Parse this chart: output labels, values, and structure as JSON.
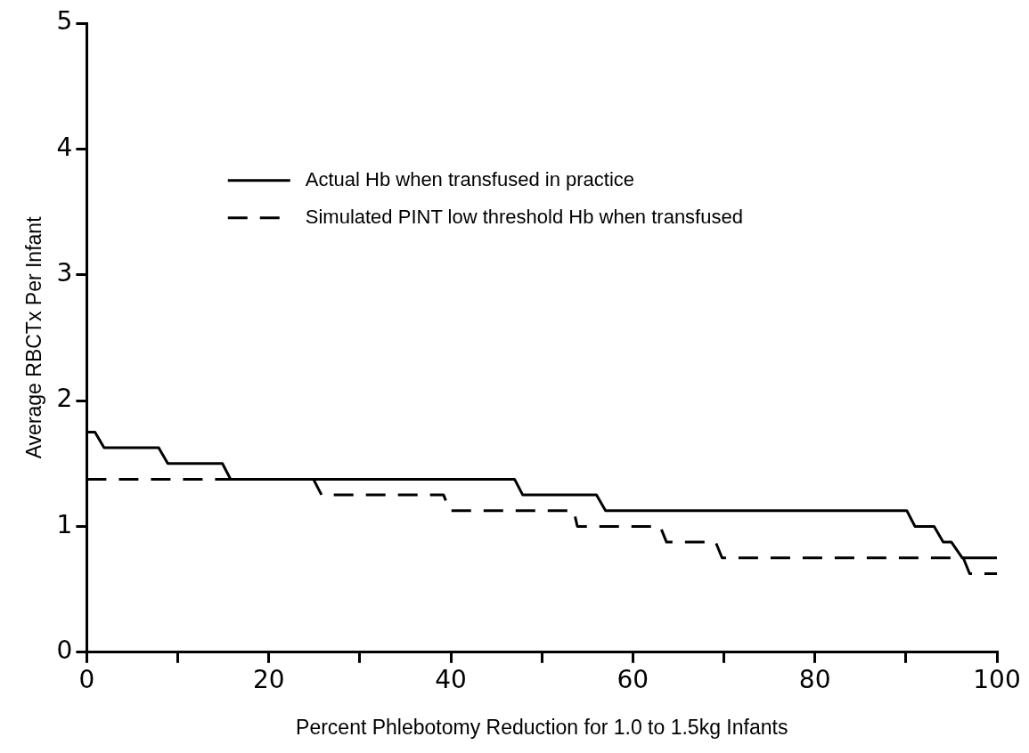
{
  "chart_data": {
    "type": "line",
    "xlabel": "Percent Phlebotomy Reduction for 1.0 to 1.5kg Infants",
    "ylabel": "Average RBCTx Per Infant",
    "xlim": [
      0,
      100
    ],
    "xticks": [
      0,
      {
        "value": 10,
        "label": null
      },
      20,
      {
        "value": 30,
        "label": null
      },
      40,
      {
        "value": 50,
        "label": null
      },
      60,
      {
        "value": 70,
        "label": null
      },
      80,
      {
        "value": 90,
        "label": null
      },
      100
    ],
    "ylim": [
      0,
      5
    ],
    "yticks": [
      0,
      1,
      2,
      3,
      4,
      5
    ],
    "grid": false,
    "legend": "top",
    "marker": "none",
    "series": [
      {
        "name": "Actual Hb when transfused in practice",
        "color": "#000000",
        "line_style": "solid",
        "x": [
          0,
          0.9,
          1.9,
          7.9,
          8.9,
          14.9,
          15.8,
          47.0,
          47.9,
          56.0,
          57.0,
          90.1,
          91.0,
          93.1,
          94.1,
          95.0,
          96.2,
          100
        ],
        "values": [
          1.75,
          1.75,
          1.625,
          1.625,
          1.5,
          1.5,
          1.375,
          1.375,
          1.25,
          1.25,
          1.125,
          1.125,
          1.0,
          1.0,
          0.875,
          0.875,
          0.75,
          0.75
        ]
      },
      {
        "name": "Simulated PINT low threshold Hb when transfused",
        "color": "#000000",
        "line_style": "dashed",
        "x": [
          0,
          24.9,
          25.8,
          39.2,
          39.9,
          53.5,
          53.9,
          63.0,
          63.7,
          69.1,
          69.8,
          96.3,
          97.0,
          100
        ],
        "values": [
          1.375,
          1.375,
          1.25,
          1.25,
          1.125,
          1.125,
          1.0,
          1.0,
          0.875,
          0.875,
          0.75,
          0.75,
          0.625,
          0.625
        ]
      }
    ]
  }
}
